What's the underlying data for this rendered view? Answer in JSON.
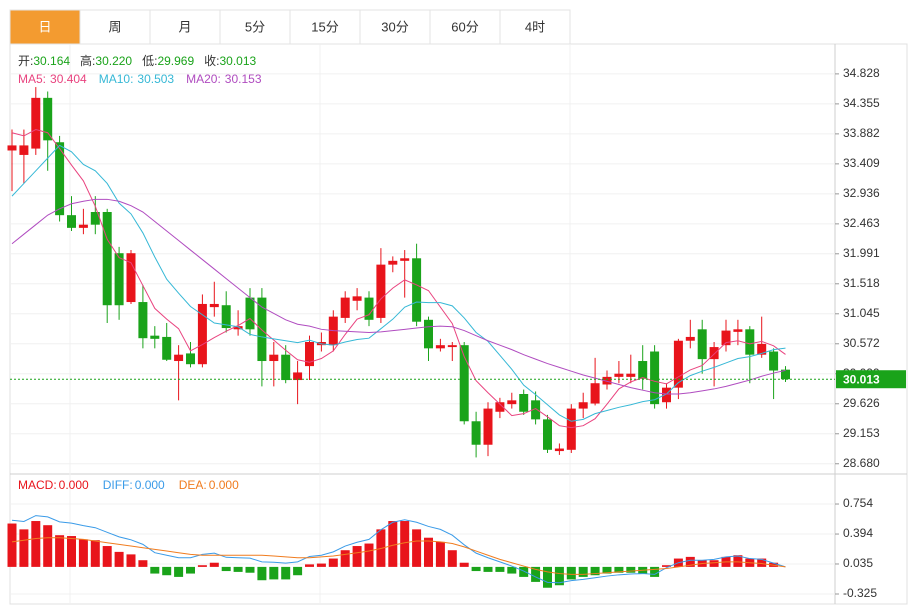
{
  "tabs": {
    "items": [
      "日",
      "周",
      "月",
      "5分",
      "15分",
      "30分",
      "60分",
      "4时"
    ],
    "active": 0
  },
  "chart_data": [
    {
      "type": "candlestick",
      "up_color": "#e8141b",
      "down_color": "#1aa31a",
      "open": [
        33.62,
        33.55,
        33.65,
        34.45,
        33.75,
        32.6,
        32.4,
        32.65,
        32.65,
        32.0,
        31.23,
        31.23,
        30.7,
        30.68,
        30.3,
        30.42,
        30.25,
        31.15,
        31.18,
        30.8,
        31.3,
        31.3,
        30.3,
        30.4,
        30.0,
        30.22,
        30.55,
        30.55,
        30.98,
        31.25,
        31.3,
        30.98,
        31.82,
        31.88,
        31.92,
        30.95,
        30.5,
        30.52,
        30.55,
        29.35,
        28.98,
        29.5,
        29.62,
        29.78,
        29.68,
        29.38,
        28.88,
        28.9,
        29.55,
        29.63,
        29.93,
        30.05,
        30.05,
        30.3,
        30.45,
        29.65,
        29.88,
        30.62,
        30.8,
        30.33,
        30.55,
        30.76,
        30.8,
        30.4,
        30.45,
        30.164
      ],
      "high": [
        33.95,
        33.95,
        34.62,
        34.55,
        33.85,
        32.9,
        32.7,
        32.9,
        32.7,
        32.1,
        32.05,
        31.5,
        30.85,
        30.9,
        30.55,
        30.6,
        31.35,
        31.55,
        31.4,
        31.1,
        31.45,
        31.45,
        30.6,
        30.55,
        30.3,
        30.7,
        30.75,
        31.1,
        31.4,
        31.45,
        31.4,
        32.08,
        31.95,
        32.05,
        32.15,
        31.0,
        30.65,
        30.6,
        30.6,
        29.5,
        29.65,
        29.72,
        29.8,
        29.85,
        29.82,
        29.45,
        29.0,
        29.62,
        29.8,
        30.35,
        30.15,
        30.3,
        30.4,
        30.55,
        30.55,
        29.95,
        30.65,
        30.95,
        30.95,
        30.6,
        30.95,
        30.95,
        30.85,
        31.0,
        30.5,
        30.22
      ],
      "low": [
        32.98,
        33.1,
        33.55,
        33.3,
        32.5,
        32.35,
        32.3,
        32.3,
        30.9,
        30.95,
        31.2,
        30.5,
        30.5,
        30.3,
        29.68,
        30.2,
        30.2,
        31.0,
        30.75,
        30.7,
        30.7,
        29.9,
        29.9,
        29.95,
        29.62,
        30.0,
        30.45,
        30.45,
        30.9,
        31.1,
        30.85,
        30.9,
        31.7,
        31.3,
        30.85,
        30.3,
        30.45,
        30.3,
        29.3,
        28.78,
        28.8,
        29.4,
        29.55,
        29.45,
        29.3,
        28.85,
        28.82,
        28.85,
        29.4,
        29.6,
        29.85,
        29.95,
        29.95,
        29.85,
        29.55,
        29.55,
        29.7,
        30.5,
        30.1,
        29.9,
        30.45,
        30.55,
        29.95,
        30.35,
        29.7,
        29.969
      ],
      "close": [
        33.7,
        33.7,
        34.45,
        33.78,
        32.6,
        32.4,
        32.45,
        32.45,
        31.18,
        31.18,
        32.0,
        30.66,
        30.65,
        30.32,
        30.4,
        30.25,
        31.2,
        31.2,
        30.82,
        30.85,
        30.8,
        30.3,
        30.4,
        30.0,
        30.12,
        30.6,
        30.6,
        31.0,
        31.3,
        31.32,
        30.95,
        31.82,
        31.88,
        31.92,
        30.92,
        30.5,
        30.55,
        30.55,
        29.35,
        28.98,
        29.55,
        29.65,
        29.68,
        29.5,
        29.38,
        28.9,
        28.92,
        29.55,
        29.65,
        29.95,
        30.05,
        30.1,
        30.1,
        30.02,
        29.62,
        29.88,
        30.62,
        30.68,
        30.33,
        30.52,
        30.78,
        30.8,
        30.4,
        30.57,
        30.15,
        30.013
      ],
      "value_labels": {
        "high": {
          "65": "30.220"
        }
      },
      "ohlc_names": [
        "开:",
        "高:",
        "低:",
        "收:"
      ],
      "series": [
        {
          "name": "MA5:",
          "color": "#e9437f",
          "values": [
            33.9,
            33.85,
            33.95,
            33.9,
            33.65,
            33.39,
            33.14,
            32.74,
            32.22,
            31.93,
            31.85,
            31.49,
            31.13,
            30.96,
            30.81,
            30.46,
            30.56,
            30.67,
            30.77,
            30.86,
            30.97,
            30.79,
            30.63,
            30.47,
            30.32,
            30.28,
            30.34,
            30.46,
            30.72,
            30.96,
            31.03,
            31.28,
            31.45,
            31.58,
            31.5,
            31.41,
            31.15,
            30.89,
            30.37,
            29.99,
            29.8,
            29.62,
            29.44,
            29.47,
            29.55,
            29.42,
            29.28,
            29.25,
            29.28,
            29.39,
            29.62,
            29.86,
            29.97,
            30.04,
            29.98,
            29.94,
            30.05,
            30.16,
            30.23,
            30.41,
            30.59,
            30.62,
            30.57,
            30.61,
            30.54,
            30.404
          ]
        },
        {
          "name": "MA10:",
          "color": "#36b8d6",
          "values": [
            32.9,
            33.1,
            33.3,
            33.5,
            33.7,
            33.6,
            33.4,
            33.3,
            33.1,
            32.79,
            32.62,
            32.32,
            31.94,
            31.59,
            31.37,
            31.16,
            31.03,
            30.9,
            30.87,
            30.84,
            30.72,
            30.68,
            30.65,
            30.62,
            30.59,
            30.63,
            30.57,
            30.55,
            30.6,
            30.64,
            30.66,
            30.81,
            30.96,
            31.15,
            31.23,
            31.22,
            31.22,
            31.17,
            30.98,
            30.75,
            30.61,
            30.39,
            30.17,
            29.92,
            29.77,
            29.61,
            29.45,
            29.35,
            29.38,
            29.47,
            29.52,
            29.57,
            29.61,
            29.66,
            29.69,
            29.78,
            29.96,
            30.07,
            30.14,
            30.2,
            30.27,
            30.34,
            30.37,
            30.42,
            30.48,
            30.503
          ]
        },
        {
          "name": "MA20:",
          "color": "#b04cc0",
          "values": [
            32.15,
            32.3,
            32.45,
            32.6,
            32.7,
            32.78,
            32.82,
            32.85,
            32.85,
            32.82,
            32.75,
            32.65,
            32.5,
            32.35,
            32.2,
            32.05,
            31.9,
            31.75,
            31.6,
            31.45,
            31.3,
            31.15,
            31.05,
            30.95,
            30.88,
            30.85,
            30.8,
            30.78,
            30.77,
            30.76,
            30.75,
            30.76,
            30.78,
            30.8,
            30.82,
            30.84,
            30.85,
            30.84,
            30.78,
            30.7,
            30.62,
            30.55,
            30.48,
            30.4,
            30.33,
            30.26,
            30.2,
            30.14,
            30.08,
            30.03,
            29.98,
            29.93,
            29.88,
            29.84,
            29.8,
            29.78,
            29.78,
            29.8,
            29.83,
            29.86,
            29.9,
            29.95,
            30.0,
            30.06,
            30.11,
            30.153
          ]
        }
      ],
      "ylim": [
        28.55,
        35.52
      ],
      "yticks": [
        34.828,
        34.355,
        33.882,
        33.409,
        32.936,
        32.463,
        31.991,
        31.518,
        31.045,
        30.572,
        30.099,
        29.626,
        29.153,
        {
          "value": 28.68,
          "label": "28.680"
        }
      ],
      "grid": true
    },
    {
      "type": "macd",
      "up_color": "#e8141b",
      "down_color": "#1aa31a",
      "series": [
        {
          "name": "MACD:",
          "color": "#e8141b",
          "values": [
            0.52,
            0.45,
            0.55,
            0.5,
            0.38,
            0.37,
            0.33,
            0.32,
            0.25,
            0.18,
            0.15,
            0.08,
            -0.08,
            -0.1,
            -0.12,
            -0.08,
            0.02,
            0.05,
            -0.05,
            -0.06,
            -0.07,
            -0.16,
            -0.15,
            -0.15,
            -0.1,
            0.03,
            0.04,
            0.1,
            0.2,
            0.25,
            0.28,
            0.45,
            0.55,
            0.55,
            0.45,
            0.35,
            0.3,
            0.2,
            0.05,
            -0.05,
            -0.06,
            -0.06,
            -0.08,
            -0.12,
            -0.18,
            -0.25,
            -0.22,
            -0.15,
            -0.12,
            -0.1,
            -0.08,
            -0.07,
            -0.07,
            -0.08,
            -0.12,
            0.02,
            0.1,
            0.12,
            0.08,
            0.08,
            0.12,
            0.14,
            0.1,
            0.1,
            0.05,
            0
          ],
          "value_labels": {
            "65": "0.000"
          }
        },
        {
          "name": "DIFF:",
          "color": "#3a9be8",
          "values": [
            0.56,
            0.545,
            0.615,
            0.6,
            0.54,
            0.525,
            0.495,
            0.47,
            0.415,
            0.36,
            0.325,
            0.27,
            0.17,
            0.14,
            0.11,
            0.11,
            0.15,
            0.165,
            0.115,
            0.11,
            0.105,
            0.06,
            0.055,
            0.045,
            0.06,
            0.125,
            0.14,
            0.18,
            0.25,
            0.295,
            0.33,
            0.445,
            0.535,
            0.565,
            0.535,
            0.485,
            0.45,
            0.38,
            0.265,
            0.165,
            0.11,
            0.06,
            0.01,
            -0.05,
            -0.12,
            -0.185,
            -0.19,
            -0.165,
            -0.15,
            -0.13,
            -0.11,
            -0.095,
            -0.085,
            -0.08,
            -0.09,
            -0.01,
            0.05,
            0.08,
            0.08,
            0.09,
            0.12,
            0.13,
            0.1,
            0.09,
            0.045,
            0
          ],
          "value_labels": {
            "65": "0.000"
          }
        },
        {
          "name": "DEA:",
          "color": "#f07c1f",
          "values": [
            0.3,
            0.32,
            0.34,
            0.35,
            0.35,
            0.34,
            0.33,
            0.31,
            0.29,
            0.27,
            0.25,
            0.23,
            0.21,
            0.19,
            0.17,
            0.15,
            0.14,
            0.14,
            0.14,
            0.14,
            0.14,
            0.14,
            0.13,
            0.12,
            0.11,
            0.11,
            0.12,
            0.13,
            0.15,
            0.17,
            0.19,
            0.22,
            0.26,
            0.29,
            0.31,
            0.31,
            0.3,
            0.28,
            0.24,
            0.19,
            0.14,
            0.09,
            0.05,
            0.01,
            -0.03,
            -0.06,
            -0.08,
            -0.09,
            -0.09,
            -0.08,
            -0.07,
            -0.06,
            -0.05,
            -0.04,
            -0.03,
            -0.02,
            0,
            0.02,
            0.04,
            0.05,
            0.06,
            0.06,
            0.05,
            0.04,
            0.02,
            0
          ],
          "value_labels": {
            "65": "0.000"
          }
        }
      ],
      "ylim": [
        -0.445,
        1.09
      ],
      "yticks": [
        0.754,
        0.394,
        0.035,
        -0.325
      ],
      "grid": true
    }
  ]
}
